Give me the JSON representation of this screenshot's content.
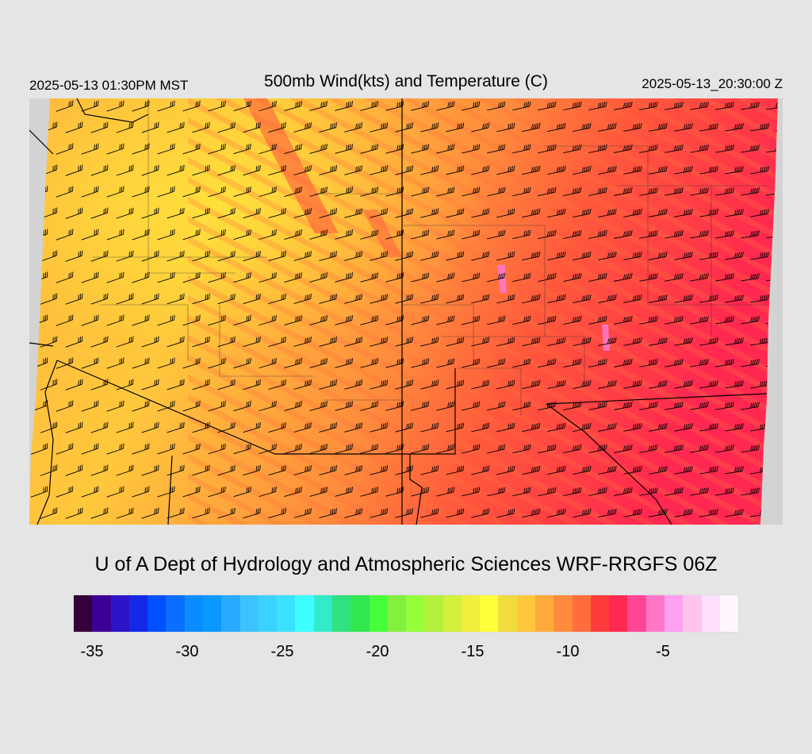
{
  "header": {
    "local_time": "2025-05-13 01:30PM MST",
    "title": "500mb Wind(kts) and Temperature (C)",
    "utc_time": "2025-05-13_20:30:00 Z"
  },
  "credit": "U of A Dept of Hydrology and Atmospheric Sciences WRF-RRGFS 06Z",
  "colorbar": {
    "colors": [
      "#36003a",
      "#3c0096",
      "#2e14c8",
      "#1428e6",
      "#0050ff",
      "#0a6eff",
      "#0a8cff",
      "#0a9aff",
      "#28aaff",
      "#3cc3ff",
      "#3cd2ff",
      "#3ce1ff",
      "#3cffff",
      "#32ebc8",
      "#32e182",
      "#32e650",
      "#46ff3c",
      "#82f03c",
      "#96ff3c",
      "#b4f03c",
      "#d2f03c",
      "#f0f03c",
      "#ffff3c",
      "#f0dc3c",
      "#ffc83c",
      "#ffaa3c",
      "#ff8c3c",
      "#ff6e3c",
      "#ff3c3c",
      "#ff2850",
      "#ff4696",
      "#ff78c8",
      "#ffa0f0",
      "#ffc3f0",
      "#ffe1ff",
      "#fff5ff"
    ],
    "tick_labels": [
      "-35",
      "-30",
      "-25",
      "-20",
      "-15",
      "-10",
      "-5"
    ],
    "tick_values": [
      -35,
      -30,
      -25,
      -20,
      -15,
      -10,
      -5
    ],
    "min": -36,
    "max": -1
  },
  "map": {
    "field": "500mb temperature (C) with wind barbs (kts)",
    "no_data_color": "#d3d3d3",
    "boundary_color": "#000000"
  }
}
